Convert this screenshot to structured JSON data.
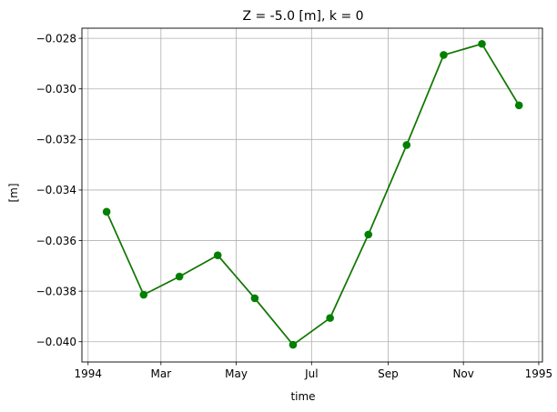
{
  "chart_data": {
    "type": "line",
    "title": "Z = -5.0 [m], k = 0",
    "xlabel": "time",
    "ylabel": "[m]",
    "x": [
      "1994-01-16",
      "1994-02-15",
      "1994-03-16",
      "1994-04-16",
      "1994-05-16",
      "1994-06-16",
      "1994-07-16",
      "1994-08-16",
      "1994-09-16",
      "1994-10-16",
      "1994-11-16",
      "1994-12-16"
    ],
    "xlim": [
      "1993-12-27",
      "1995-01-04"
    ],
    "x_ticks": [
      {
        "date": "1994-01-01",
        "label": "1994"
      },
      {
        "date": "1994-03-01",
        "label": "Mar"
      },
      {
        "date": "1994-05-01",
        "label": "May"
      },
      {
        "date": "1994-07-01",
        "label": "Jul"
      },
      {
        "date": "1994-09-01",
        "label": "Sep"
      },
      {
        "date": "1994-11-01",
        "label": "Nov"
      },
      {
        "date": "1995-01-01",
        "label": "1995"
      }
    ],
    "ylim": [
      -0.0408,
      -0.0276
    ],
    "y_ticks": [
      -0.04,
      -0.038,
      -0.036,
      -0.034,
      -0.032,
      -0.03,
      -0.028
    ],
    "y_tick_labels": [
      "−0.040",
      "−0.038",
      "−0.036",
      "−0.034",
      "−0.032",
      "−0.030",
      "−0.028"
    ],
    "grid": true,
    "series": [
      {
        "color": "#d62728",
        "marker": "none",
        "values": [
          -0.03486,
          -0.03814,
          -0.03742,
          -0.03658,
          -0.03828,
          -0.04012,
          -0.03906,
          -0.03576,
          -0.03222,
          -0.02866,
          -0.02822,
          -0.03065
        ]
      },
      {
        "color": "#008000",
        "marker": "circle",
        "values": [
          -0.03486,
          -0.03814,
          -0.03742,
          -0.03658,
          -0.03828,
          -0.04012,
          -0.03906,
          -0.03576,
          -0.03222,
          -0.02866,
          -0.02822,
          -0.03065
        ]
      }
    ]
  }
}
